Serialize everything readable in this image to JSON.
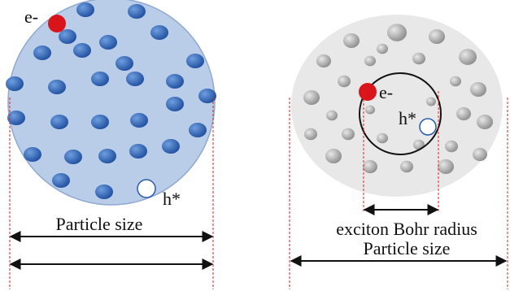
{
  "left_panel": {
    "electron_label": "e-",
    "hole_label": "h*",
    "size_label": "Particle size"
  },
  "right_panel": {
    "electron_label": "e-",
    "hole_label": "h*",
    "radius_label": "exciton Bohr radius",
    "size_label": "Particle size"
  }
}
